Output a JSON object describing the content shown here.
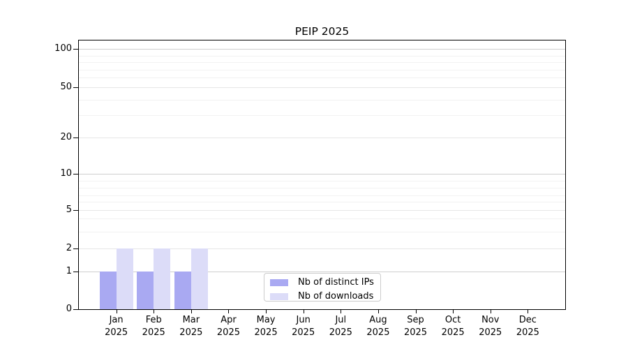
{
  "chart_data": {
    "type": "bar",
    "title": "PEIP 2025",
    "categories": [
      "Jan 2025",
      "Feb 2025",
      "Mar 2025",
      "Apr 2025",
      "May 2025",
      "Jun 2025",
      "Jul 2025",
      "Aug 2025",
      "Sep 2025",
      "Oct 2025",
      "Nov 2025",
      "Dec 2025"
    ],
    "series": [
      {
        "name": "Nb of distinct IPs",
        "color": "#a9a9f2",
        "values": [
          1,
          1,
          1,
          0,
          0,
          0,
          0,
          0,
          0,
          0,
          0,
          0
        ]
      },
      {
        "name": "Nb of downloads",
        "color": "#dcdcf8",
        "values": [
          2,
          2,
          2,
          0,
          0,
          0,
          0,
          0,
          0,
          0,
          0,
          0
        ]
      }
    ],
    "yscale": "log-like",
    "y_tick_labels": [
      100,
      50,
      20,
      10,
      5,
      2,
      1,
      0
    ],
    "ylim": [
      0,
      100
    ],
    "grid": "horizontal",
    "legend_position": "lower-center",
    "legend": [
      "Nb of distinct IPs",
      "Nb of downloads"
    ]
  },
  "colors": {
    "bar_distinct_ips": "#a9a9f2",
    "bar_downloads": "#dcdcf8",
    "grid_decade": "#cfcfcf",
    "grid_labeled": "#e6e6e6",
    "grid_minor": "#f2f2f2",
    "spine": "#000000",
    "legend_border": "#cccccc"
  }
}
